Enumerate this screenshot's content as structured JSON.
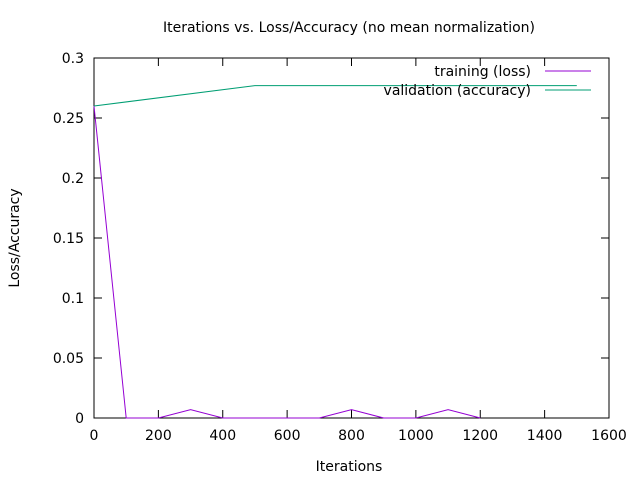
{
  "chart_data": {
    "type": "line",
    "title": "Iterations vs. Loss/Accuracy (no mean normalization)",
    "xlabel": "Iterations",
    "ylabel": "Loss/Accuracy",
    "xlim": [
      0,
      1600
    ],
    "ylim": [
      0,
      0.3
    ],
    "xticks": [
      0,
      200,
      400,
      600,
      800,
      1000,
      1200,
      1400,
      1600
    ],
    "yticks": [
      0,
      0.05,
      0.1,
      0.15,
      0.2,
      0.25,
      0.3
    ],
    "xtick_labels": [
      "0",
      "200",
      "400",
      "600",
      "800",
      "1000",
      "1200",
      "1400",
      "1600"
    ],
    "ytick_labels": [
      "0",
      "0.05",
      "0.1",
      "0.15",
      "0.2",
      "0.25",
      "0.3"
    ],
    "grid": false,
    "legend_position": "top-right",
    "series": [
      {
        "name": "training (loss)",
        "color": "#9400d3",
        "x": [
          0,
          100,
          200,
          300,
          400,
          500,
          600,
          700,
          800,
          900,
          1000,
          1100,
          1200
        ],
        "y": [
          0.26,
          0.0,
          0.0,
          0.007,
          0.0,
          0.0,
          0.0,
          0.0,
          0.007,
          0.0,
          0.0,
          0.007,
          0.0
        ]
      },
      {
        "name": "validation (accuracy)",
        "color": "#009e73",
        "x": [
          0,
          500,
          1000,
          1500
        ],
        "y": [
          0.26,
          0.277,
          0.277,
          0.277
        ]
      }
    ]
  }
}
